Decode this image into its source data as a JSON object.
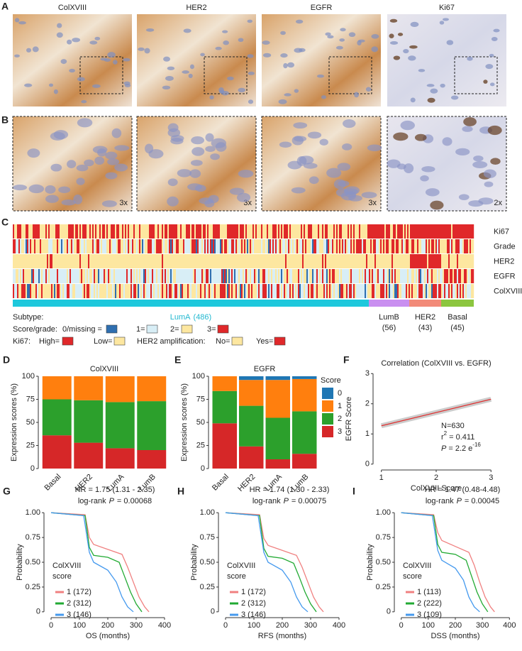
{
  "panel_a": {
    "label": "A",
    "images": [
      "ColXVIII",
      "HER2",
      "EGFR",
      "Ki67"
    ]
  },
  "panel_b": {
    "label": "B",
    "magnifications": [
      "3x",
      "3x",
      "3x",
      "2x"
    ]
  },
  "panel_c": {
    "label": "C",
    "rows": [
      "Ki67",
      "Grade",
      "HER2",
      "EGFR",
      "ColXVIII"
    ],
    "subtype_label": "Subtype:",
    "subtypes": [
      {
        "name": "LumA",
        "count": "(486)",
        "color": "#1ec8dc",
        "text_color": "#22b8d0"
      },
      {
        "name": "LumB",
        "count": "(56)",
        "color": "#c98ff0",
        "text_color": "#a050d0"
      },
      {
        "name": "HER2",
        "count": "(43)",
        "color": "#f28a78",
        "text_color": "#e0604a"
      },
      {
        "name": "Basal",
        "count": "(45)",
        "color": "#8cc63f",
        "text_color": "#5a9a20"
      }
    ],
    "score_label": "Score/grade:",
    "score_keys": [
      {
        "label": "0/missing =",
        "color": "#2f6fb0"
      },
      {
        "label": "1=",
        "color": "#d8eef6"
      },
      {
        "label": "2=",
        "color": "#fde7a0"
      },
      {
        "label": "3=",
        "color": "#e0282a"
      }
    ],
    "ki67_label": "Ki67:",
    "ki67_keys": [
      {
        "label": "High=",
        "color": "#e0282a"
      },
      {
        "label": "Low=",
        "color": "#fde7a0"
      }
    ],
    "her2_label": "HER2 amplification:",
    "her2_keys": [
      {
        "label": "No=",
        "color": "#fde7a0"
      },
      {
        "label": "Yes=",
        "color": "#e0282a"
      }
    ]
  },
  "chart_data": [
    {
      "type": "bar",
      "panel": "D",
      "title": "ColXVIII",
      "y_label": "Expression scores (%)",
      "categories": [
        "Basal",
        "HER2",
        "LumA",
        "LumB"
      ],
      "series": [
        {
          "color": "#d62728",
          "values": [
            36,
            28,
            22,
            20
          ]
        },
        {
          "color": "#2ca02c",
          "values": [
            39,
            46,
            50,
            53
          ]
        },
        {
          "color": "#ff7f0e",
          "values": [
            25,
            26,
            28,
            27
          ]
        }
      ],
      "ylim": [
        0,
        100
      ],
      "yticks": [
        0,
        25,
        50,
        75,
        100
      ]
    },
    {
      "type": "bar",
      "panel": "E",
      "title": "EGFR",
      "y_label": "Expression scores (%)",
      "legend_title": "Score",
      "categories": [
        "Basal",
        "HER2",
        "LumA",
        "LumB"
      ],
      "series": [
        {
          "name": "3",
          "color": "#d62728",
          "values": [
            49,
            24,
            10,
            16
          ]
        },
        {
          "name": "2",
          "color": "#2ca02c",
          "values": [
            35,
            44,
            45,
            46
          ]
        },
        {
          "name": "1",
          "color": "#ff7f0e",
          "values": [
            16,
            28,
            41,
            35
          ]
        },
        {
          "name": "0",
          "color": "#1f77b4",
          "values": [
            0,
            4,
            4,
            3
          ]
        }
      ],
      "ylim": [
        0,
        100
      ],
      "yticks": [
        0,
        25,
        50,
        75,
        100
      ]
    },
    {
      "type": "line",
      "panel": "F",
      "title": "Correlation (ColXVIII vs. EGFR)",
      "x_label": "ColXVIII Score",
      "y_label": "EGFR Score",
      "series": [
        {
          "color": "#e03030",
          "x": [
            1,
            3
          ],
          "values": [
            1.27,
            2.15
          ]
        }
      ],
      "xlim": [
        0.9,
        3.1
      ],
      "xticks": [
        1,
        2,
        3
      ],
      "ylim": [
        -0.1,
        3.1
      ],
      "yticks": [
        0,
        1,
        2,
        3
      ],
      "annotations": {
        "n": "N=630",
        "r": "r",
        "r_sup": "2",
        "r_rest": "= 0.411",
        "p": "P",
        "p_rest": "= 2.2 e",
        "p_sup": "-16"
      }
    },
    {
      "type": "line",
      "panel": "G",
      "hr": "HR = 1.75 (1.31 - 2.35)",
      "logrank": "log-rank",
      "p": "P",
      "p_value": "= 0.00068",
      "x_label": "OS (months)",
      "y_label": "Probability",
      "legend_title": [
        "ColXVIII",
        "score"
      ],
      "series": [
        {
          "name": "1 (172)",
          "color": "#f08080",
          "x": [
            0,
            120,
            135,
            150,
            200,
            250,
            270,
            290,
            310,
            330,
            345
          ],
          "values": [
            1,
            0.98,
            0.75,
            0.68,
            0.63,
            0.58,
            0.45,
            0.3,
            0.15,
            0.05,
            0
          ]
        },
        {
          "name": "2 (312)",
          "color": "#22aa33",
          "x": [
            0,
            120,
            135,
            150,
            200,
            240,
            260,
            280,
            300,
            320
          ],
          "values": [
            1,
            0.97,
            0.65,
            0.57,
            0.55,
            0.5,
            0.35,
            0.2,
            0.08,
            0
          ]
        },
        {
          "name": "3 (146)",
          "color": "#4499ee",
          "x": [
            0,
            115,
            135,
            150,
            200,
            230,
            250,
            270,
            290
          ],
          "values": [
            1,
            0.97,
            0.6,
            0.5,
            0.42,
            0.3,
            0.15,
            0.05,
            0
          ]
        }
      ],
      "xlim": [
        -15,
        415
      ],
      "xticks": [
        0,
        100,
        200,
        300,
        400
      ],
      "ylim": [
        -0.03,
        1.03
      ],
      "yticks": [
        0,
        0.25,
        {
          "value": 0.5,
          "label": "0.50"
        },
        0.75,
        {
          "value": 1,
          "label": "1.00"
        }
      ]
    },
    {
      "type": "line",
      "panel": "H",
      "hr": "HR = 1.74 (1.30 - 2.33)",
      "logrank": "log-rank",
      "p": "P",
      "p_value": "= 0.00075",
      "x_label": "RFS (months)",
      "y_label": "Probability",
      "legend_title": [
        "ColXVIII",
        "score"
      ],
      "series": [
        {
          "name": "1 (172)",
          "color": "#f08080",
          "x": [
            0,
            120,
            135,
            150,
            200,
            250,
            270,
            290,
            310,
            330,
            345
          ],
          "values": [
            1,
            0.98,
            0.74,
            0.67,
            0.62,
            0.57,
            0.45,
            0.3,
            0.15,
            0.05,
            0
          ]
        },
        {
          "name": "2 (312)",
          "color": "#22aa33",
          "x": [
            0,
            120,
            135,
            150,
            200,
            240,
            260,
            280,
            300,
            320
          ],
          "values": [
            1,
            0.97,
            0.64,
            0.56,
            0.54,
            0.49,
            0.35,
            0.2,
            0.08,
            0
          ]
        },
        {
          "name": "3 (146)",
          "color": "#4499ee",
          "x": [
            0,
            115,
            135,
            150,
            200,
            230,
            250,
            270,
            290
          ],
          "values": [
            1,
            0.97,
            0.6,
            0.5,
            0.42,
            0.3,
            0.15,
            0.05,
            0
          ]
        }
      ],
      "xlim": [
        -15,
        415
      ],
      "xticks": [
        0,
        100,
        200,
        300,
        400
      ],
      "ylim": [
        -0.03,
        1.03
      ],
      "yticks": [
        0,
        0.25,
        {
          "value": 0.5,
          "label": "0.50"
        },
        0.75,
        {
          "value": 1,
          "label": "1.00"
        }
      ]
    },
    {
      "type": "line",
      "panel": "I",
      "hr": "HR = 1.47 (0.48-4.48)",
      "logrank": "log-rank",
      "p": "P",
      "p_value": "= 0.00045",
      "x_label": "DSS (months)",
      "y_label": "Probability",
      "legend_title": [
        "ColXVIII",
        "score"
      ],
      "series": [
        {
          "name": "1 (113)",
          "color": "#f08080",
          "x": [
            0,
            120,
            135,
            150,
            200,
            250,
            270,
            290,
            310,
            330,
            345
          ],
          "values": [
            1,
            0.98,
            0.8,
            0.72,
            0.66,
            0.6,
            0.47,
            0.3,
            0.15,
            0.05,
            0
          ]
        },
        {
          "name": "2 (222)",
          "color": "#22aa33",
          "x": [
            0,
            120,
            135,
            150,
            200,
            240,
            260,
            280,
            300,
            320
          ],
          "values": [
            1,
            0.97,
            0.68,
            0.6,
            0.58,
            0.52,
            0.36,
            0.2,
            0.08,
            0
          ]
        },
        {
          "name": "3 (109)",
          "color": "#4499ee",
          "x": [
            0,
            115,
            135,
            150,
            200,
            230,
            250,
            270,
            290
          ],
          "values": [
            1,
            0.97,
            0.62,
            0.52,
            0.44,
            0.32,
            0.15,
            0.05,
            0
          ]
        }
      ],
      "xlim": [
        -15,
        415
      ],
      "xticks": [
        0,
        100,
        200,
        300,
        400
      ],
      "ylim": [
        -0.03,
        1.03
      ],
      "yticks": [
        0,
        0.25,
        {
          "value": 0.5,
          "label": "0.50"
        },
        0.75,
        {
          "value": 1,
          "label": "1.00"
        }
      ]
    }
  ]
}
